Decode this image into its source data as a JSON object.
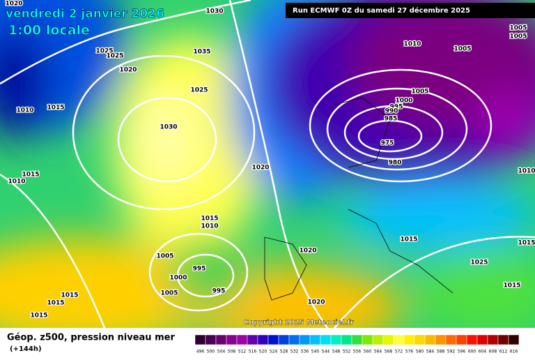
{
  "header": {
    "date": "vendredi 2 janvier 2026",
    "time": "1:00 locale",
    "run": "Run ECMWF 0Z du samedi 27 décembre 2025"
  },
  "map": {
    "copyright": "Copyright 2025 Meteociel.fr",
    "isobar_labels": [
      1030,
      1020,
      1025,
      1025,
      1020,
      1035,
      1025,
      1010,
      1015,
      1030,
      1015,
      1010,
      1020,
      1010,
      1005,
      1005,
      1005,
      1005,
      1000,
      995,
      990,
      985,
      975,
      980,
      1010,
      1015,
      1010,
      1005,
      995,
      1000,
      995,
      1005,
      1015,
      1015,
      1015,
      1020,
      1015,
      1025,
      1015,
      1020,
      1015
    ]
  },
  "legend": {
    "title": "Géop. z500, pression niveau mer",
    "lead": "(+144h)",
    "labels": [
      496,
      500,
      504,
      508,
      512,
      516,
      520,
      524,
      528,
      532,
      536,
      540,
      544,
      548,
      552,
      556,
      560,
      564,
      568,
      572,
      576,
      580,
      584,
      588,
      592,
      596,
      600,
      604,
      608,
      612,
      616
    ],
    "colors": [
      "#2a0030",
      "#4a0050",
      "#6a0070",
      "#8a0090",
      "#a000a8",
      "#6000b0",
      "#3000c0",
      "#0010d0",
      "#0040e0",
      "#0070f0",
      "#0098ff",
      "#00c0ff",
      "#00e0f0",
      "#00f0c0",
      "#00e888",
      "#30e040",
      "#80e800",
      "#b8f000",
      "#e8f800",
      "#ffff40",
      "#fff000",
      "#ffd800",
      "#ffb800",
      "#ff9000",
      "#ff6800",
      "#ff4000",
      "#ff1000",
      "#e00000",
      "#b00000",
      "#700000",
      "#300000"
    ]
  }
}
